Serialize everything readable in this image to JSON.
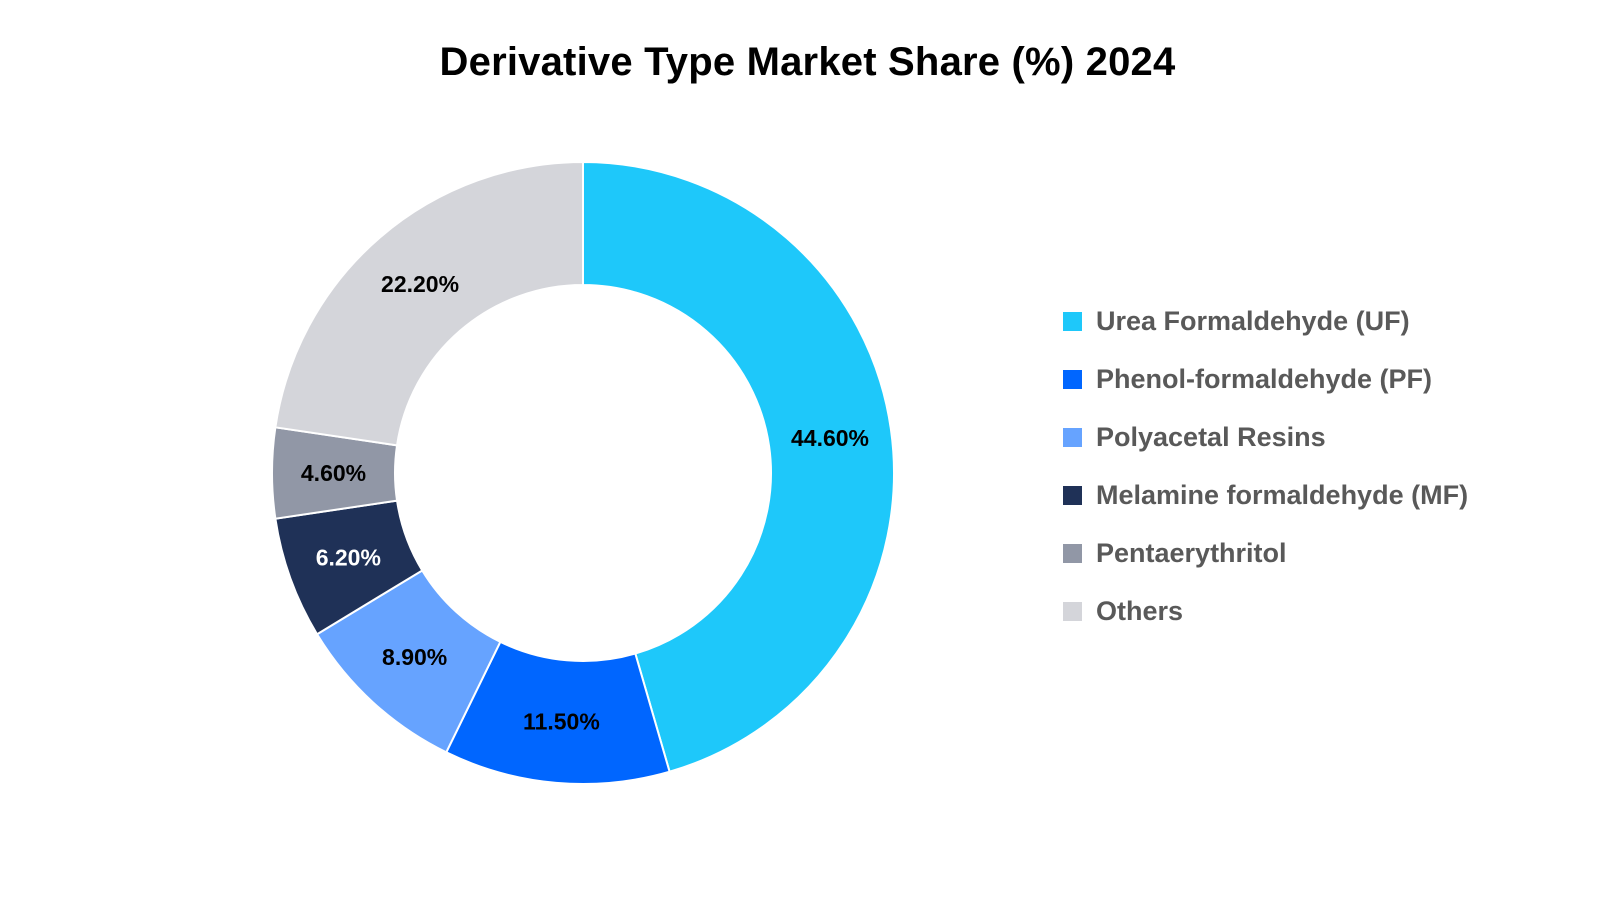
{
  "chart_data": {
    "type": "pie",
    "variant": "donut",
    "title": "Derivative Type Market Share (%) 2024",
    "legend_position": "right",
    "slices": [
      {
        "label": "Urea Formaldehyde (UF)",
        "value": 44.6,
        "display": "44.60%",
        "color": "#1EC8FA",
        "label_color": "#000000"
      },
      {
        "label": "Phenol-formaldehyde (PF)",
        "value": 11.5,
        "display": "11.50%",
        "color": "#0066FF",
        "label_color": "#000000"
      },
      {
        "label": "Polyacetal Resins",
        "value": 8.9,
        "display": "8.90%",
        "color": "#66A3FF",
        "label_color": "#000000"
      },
      {
        "label": "Melamine formaldehyde (MF)",
        "value": 6.2,
        "display": "6.20%",
        "color": "#1F3157",
        "label_color": "#FFFFFF"
      },
      {
        "label": "Pentaerythritol",
        "value": 4.6,
        "display": "4.60%",
        "color": "#9197A6",
        "label_color": "#000000"
      },
      {
        "label": "Others",
        "value": 22.2,
        "display": "22.20%",
        "color": "#D4D5DA",
        "label_color": "#000000"
      }
    ]
  }
}
